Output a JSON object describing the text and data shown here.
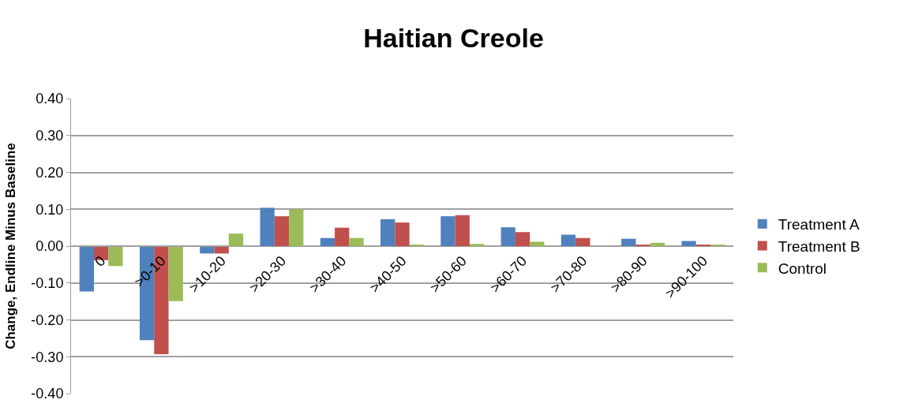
{
  "chart_data": {
    "type": "bar",
    "title": "Haitian Creole",
    "ylabel": "Change, Endline Minus Baseline",
    "categories": [
      "0",
      ">0-10",
      ">10-20",
      ">20-30",
      ">30-40",
      ">40-50",
      ">50-60",
      ">60-70",
      ">70-80",
      ">80-90",
      ">90-100"
    ],
    "series": [
      {
        "name": "Treatment A",
        "color": "#4f81bd",
        "values": [
          -0.123,
          -0.255,
          -0.02,
          0.104,
          0.022,
          0.073,
          0.081,
          0.051,
          0.031,
          0.02,
          0.014
        ]
      },
      {
        "name": "Treatment B",
        "color": "#c0504d",
        "values": [
          -0.038,
          -0.293,
          -0.02,
          0.081,
          0.05,
          0.064,
          0.084,
          0.038,
          0.022,
          0.004,
          0.003
        ]
      },
      {
        "name": "Control",
        "color": "#9bbb59",
        "values": [
          -0.054,
          -0.149,
          0.034,
          0.1,
          0.022,
          0.004,
          0.006,
          0.012,
          0.0,
          0.009,
          0.003
        ]
      }
    ],
    "ylim": [
      -0.4,
      0.4
    ],
    "yticks": [
      {
        "value": -0.4,
        "label": "-0.40"
      },
      {
        "value": -0.3,
        "label": "-0.30"
      },
      {
        "value": -0.2,
        "label": "-0.20"
      },
      {
        "value": -0.1,
        "label": "-0.10"
      },
      {
        "value": 0,
        "label": "0.00"
      },
      {
        "value": 0.1,
        "label": "0.10"
      },
      {
        "value": 0.2,
        "label": "0.20"
      },
      {
        "value": 0.3,
        "label": "0.30"
      },
      {
        "value": 0.4,
        "label": "0.40"
      }
    ],
    "grid": "y",
    "legend": "right"
  }
}
